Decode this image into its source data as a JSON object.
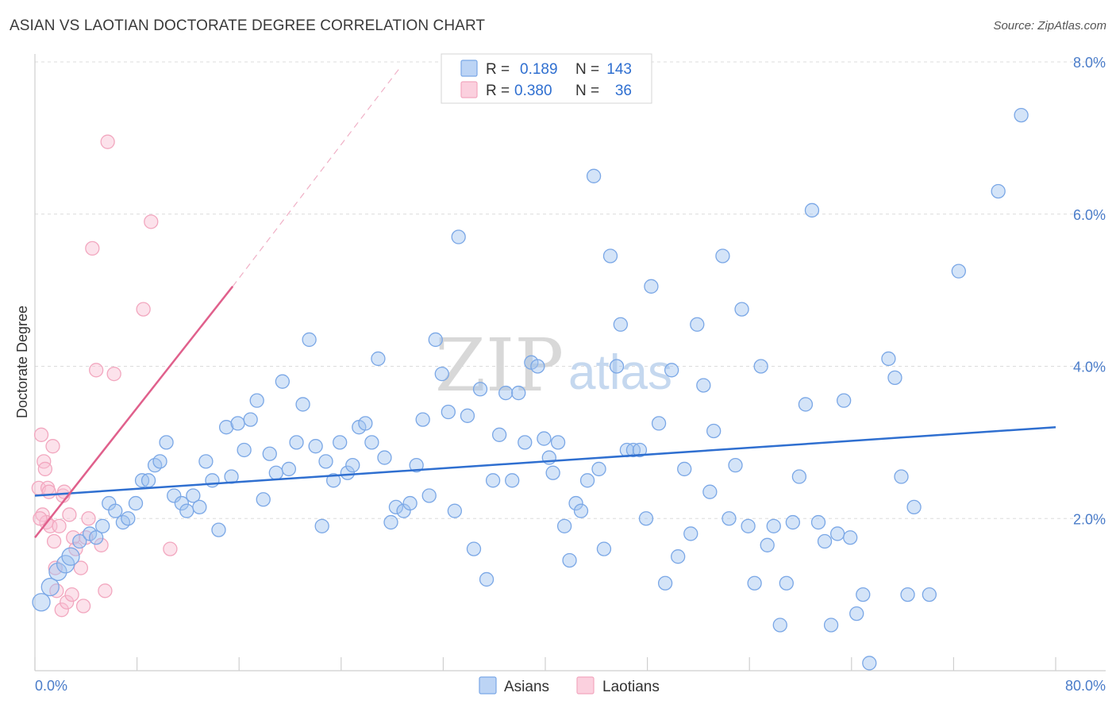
{
  "header": {
    "title": "ASIAN VS LAOTIAN DOCTORATE DEGREE CORRELATION CHART",
    "source": "Source: ZipAtlas.com"
  },
  "watermark": {
    "zip": "ZIP",
    "atlas": "atlas"
  },
  "legend": {
    "r_label": "R =",
    "n_label": "N =",
    "rows": [
      {
        "r": "0.189",
        "n": "143"
      },
      {
        "r": "0.380",
        "n": "36"
      }
    ]
  },
  "chart_data": {
    "type": "scatter",
    "title": "ASIAN VS LAOTIAN DOCTORATE DEGREE CORRELATION CHART",
    "ylabel": "Doctorate Degree",
    "xlabel": "",
    "xlim": [
      0,
      80
    ],
    "ylim": [
      0,
      8
    ],
    "x_tick_labels": [
      "0.0%",
      "80.0%"
    ],
    "y_ticks": [
      2,
      4,
      6,
      8
    ],
    "y_tick_labels": [
      "2.0%",
      "4.0%",
      "6.0%",
      "8.0%"
    ],
    "grid": true,
    "legend_position": "top-center",
    "colors": {
      "asians": "#7aa7e6",
      "laotians": "#f2a7bf",
      "asian_line": "#2f6fd0",
      "laotian_line": "#e0608c"
    },
    "series": [
      {
        "name": "Asians",
        "r": 0.189,
        "n": 143,
        "trend": {
          "x0": 0,
          "y0": 2.3,
          "x1": 80,
          "y1": 3.2
        },
        "points": [
          [
            0.5,
            0.9
          ],
          [
            1.2,
            1.1
          ],
          [
            1.8,
            1.3
          ],
          [
            2.4,
            1.4
          ],
          [
            2.8,
            1.5
          ],
          [
            3.5,
            1.7
          ],
          [
            4.3,
            1.8
          ],
          [
            4.8,
            1.75
          ],
          [
            5.3,
            1.9
          ],
          [
            5.8,
            2.2
          ],
          [
            6.3,
            2.1
          ],
          [
            6.9,
            1.95
          ],
          [
            7.3,
            2.0
          ],
          [
            7.9,
            2.2
          ],
          [
            8.4,
            2.5
          ],
          [
            8.9,
            2.5
          ],
          [
            9.4,
            2.7
          ],
          [
            9.8,
            2.75
          ],
          [
            10.3,
            3.0
          ],
          [
            10.9,
            2.3
          ],
          [
            11.5,
            2.2
          ],
          [
            11.9,
            2.1
          ],
          [
            12.4,
            2.3
          ],
          [
            12.9,
            2.15
          ],
          [
            13.4,
            2.75
          ],
          [
            13.9,
            2.5
          ],
          [
            14.4,
            1.85
          ],
          [
            15.0,
            3.2
          ],
          [
            15.4,
            2.55
          ],
          [
            15.9,
            3.25
          ],
          [
            16.4,
            2.9
          ],
          [
            16.9,
            3.3
          ],
          [
            17.4,
            3.55
          ],
          [
            17.9,
            2.25
          ],
          [
            18.4,
            2.85
          ],
          [
            18.9,
            2.6
          ],
          [
            19.4,
            3.8
          ],
          [
            19.9,
            2.65
          ],
          [
            20.5,
            3.0
          ],
          [
            21.0,
            3.5
          ],
          [
            21.5,
            4.35
          ],
          [
            22.0,
            2.95
          ],
          [
            22.5,
            1.9
          ],
          [
            22.8,
            2.75
          ],
          [
            23.4,
            2.5
          ],
          [
            23.9,
            3.0
          ],
          [
            24.5,
            2.6
          ],
          [
            24.9,
            2.7
          ],
          [
            25.4,
            3.2
          ],
          [
            25.9,
            3.25
          ],
          [
            26.4,
            3.0
          ],
          [
            26.9,
            4.1
          ],
          [
            27.4,
            2.8
          ],
          [
            27.9,
            1.95
          ],
          [
            28.3,
            2.15
          ],
          [
            28.9,
            2.1
          ],
          [
            29.4,
            2.2
          ],
          [
            29.9,
            2.7
          ],
          [
            30.4,
            3.3
          ],
          [
            30.9,
            2.3
          ],
          [
            31.4,
            4.35
          ],
          [
            31.9,
            3.9
          ],
          [
            32.4,
            3.4
          ],
          [
            32.9,
            2.1
          ],
          [
            33.2,
            5.7
          ],
          [
            33.9,
            3.35
          ],
          [
            34.4,
            1.6
          ],
          [
            34.9,
            3.7
          ],
          [
            35.4,
            1.2
          ],
          [
            35.9,
            2.5
          ],
          [
            36.4,
            3.1
          ],
          [
            36.9,
            3.65
          ],
          [
            37.4,
            2.5
          ],
          [
            37.9,
            3.65
          ],
          [
            38.4,
            3.0
          ],
          [
            38.9,
            4.05
          ],
          [
            39.4,
            4.0
          ],
          [
            39.9,
            3.05
          ],
          [
            40.3,
            2.8
          ],
          [
            40.6,
            2.6
          ],
          [
            41.0,
            3.0
          ],
          [
            41.5,
            1.9
          ],
          [
            41.9,
            1.45
          ],
          [
            42.4,
            2.2
          ],
          [
            42.8,
            2.1
          ],
          [
            43.3,
            2.5
          ],
          [
            43.8,
            6.5
          ],
          [
            44.2,
            2.65
          ],
          [
            44.6,
            1.6
          ],
          [
            45.1,
            5.45
          ],
          [
            45.6,
            4.0
          ],
          [
            45.9,
            4.55
          ],
          [
            46.4,
            2.9
          ],
          [
            46.9,
            2.9
          ],
          [
            47.4,
            2.9
          ],
          [
            47.9,
            2.0
          ],
          [
            48.3,
            5.05
          ],
          [
            48.9,
            3.25
          ],
          [
            49.4,
            1.15
          ],
          [
            49.9,
            3.95
          ],
          [
            50.4,
            1.5
          ],
          [
            50.9,
            2.65
          ],
          [
            51.4,
            1.8
          ],
          [
            51.9,
            4.55
          ],
          [
            52.4,
            3.75
          ],
          [
            52.9,
            2.35
          ],
          [
            53.2,
            3.15
          ],
          [
            53.9,
            5.45
          ],
          [
            54.4,
            2.0
          ],
          [
            54.9,
            2.7
          ],
          [
            55.4,
            4.75
          ],
          [
            55.9,
            1.9
          ],
          [
            56.4,
            1.15
          ],
          [
            56.9,
            4.0
          ],
          [
            57.4,
            1.65
          ],
          [
            57.9,
            1.9
          ],
          [
            58.4,
            0.6
          ],
          [
            58.9,
            1.15
          ],
          [
            59.4,
            1.95
          ],
          [
            59.9,
            2.55
          ],
          [
            60.4,
            3.5
          ],
          [
            60.9,
            6.05
          ],
          [
            61.4,
            1.95
          ],
          [
            61.9,
            1.7
          ],
          [
            62.4,
            0.6
          ],
          [
            62.9,
            1.8
          ],
          [
            63.4,
            3.55
          ],
          [
            63.9,
            1.75
          ],
          [
            64.4,
            0.75
          ],
          [
            64.9,
            1.0
          ],
          [
            65.4,
            0.1
          ],
          [
            66.9,
            4.1
          ],
          [
            67.4,
            3.85
          ],
          [
            67.9,
            2.55
          ],
          [
            68.4,
            1.0
          ],
          [
            68.9,
            2.15
          ],
          [
            70.1,
            1.0
          ],
          [
            72.4,
            5.25
          ],
          [
            75.5,
            6.3
          ],
          [
            77.3,
            7.3
          ]
        ]
      },
      {
        "name": "Laotians",
        "r": 0.38,
        "n": 36,
        "trend": {
          "x0": 0,
          "y0": 1.75,
          "x1": 15.5,
          "y1": 5.05
        },
        "trend_extension": {
          "x0": 15.5,
          "y0": 5.05,
          "x1": 28.5,
          "y1": 7.9
        },
        "points": [
          [
            0.3,
            2.4
          ],
          [
            0.5,
            3.1
          ],
          [
            0.6,
            2.05
          ],
          [
            0.7,
            2.75
          ],
          [
            0.8,
            2.65
          ],
          [
            0.9,
            1.95
          ],
          [
            1.0,
            2.4
          ],
          [
            1.1,
            2.35
          ],
          [
            1.2,
            1.9
          ],
          [
            1.4,
            2.95
          ],
          [
            1.5,
            1.7
          ],
          [
            1.6,
            1.35
          ],
          [
            1.7,
            1.05
          ],
          [
            1.9,
            1.9
          ],
          [
            2.1,
            0.8
          ],
          [
            2.2,
            2.3
          ],
          [
            2.3,
            2.35
          ],
          [
            2.5,
            0.9
          ],
          [
            2.7,
            2.05
          ],
          [
            2.9,
            1.0
          ],
          [
            3.0,
            1.75
          ],
          [
            3.2,
            1.6
          ],
          [
            3.6,
            1.35
          ],
          [
            3.8,
            0.85
          ],
          [
            4.0,
            1.75
          ],
          [
            4.2,
            2.0
          ],
          [
            4.5,
            5.55
          ],
          [
            4.8,
            3.95
          ],
          [
            5.2,
            1.65
          ],
          [
            5.5,
            1.05
          ],
          [
            5.7,
            6.95
          ],
          [
            6.2,
            3.9
          ],
          [
            8.5,
            4.75
          ],
          [
            9.1,
            5.9
          ],
          [
            10.6,
            1.6
          ],
          [
            0.4,
            2.0
          ]
        ]
      }
    ]
  },
  "bottom_legend": [
    {
      "label": "Asians"
    },
    {
      "label": "Laotians"
    }
  ]
}
